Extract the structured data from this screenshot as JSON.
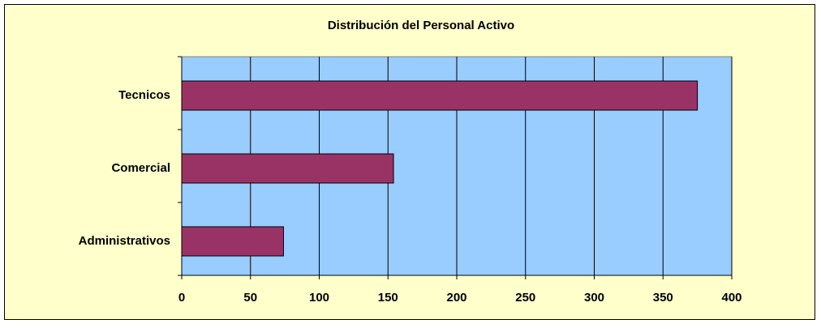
{
  "chart_data": {
    "type": "bar",
    "orientation": "horizontal",
    "title": "Distribución del Personal Activo",
    "categories": [
      "Tecnicos",
      "Comercial",
      "Administrativos"
    ],
    "values": [
      375,
      154,
      74
    ],
    "color": "#993366",
    "xlim": [
      0,
      400
    ],
    "xticks": [
      0,
      50,
      100,
      150,
      200,
      250,
      300,
      350,
      400
    ],
    "grid": true
  }
}
